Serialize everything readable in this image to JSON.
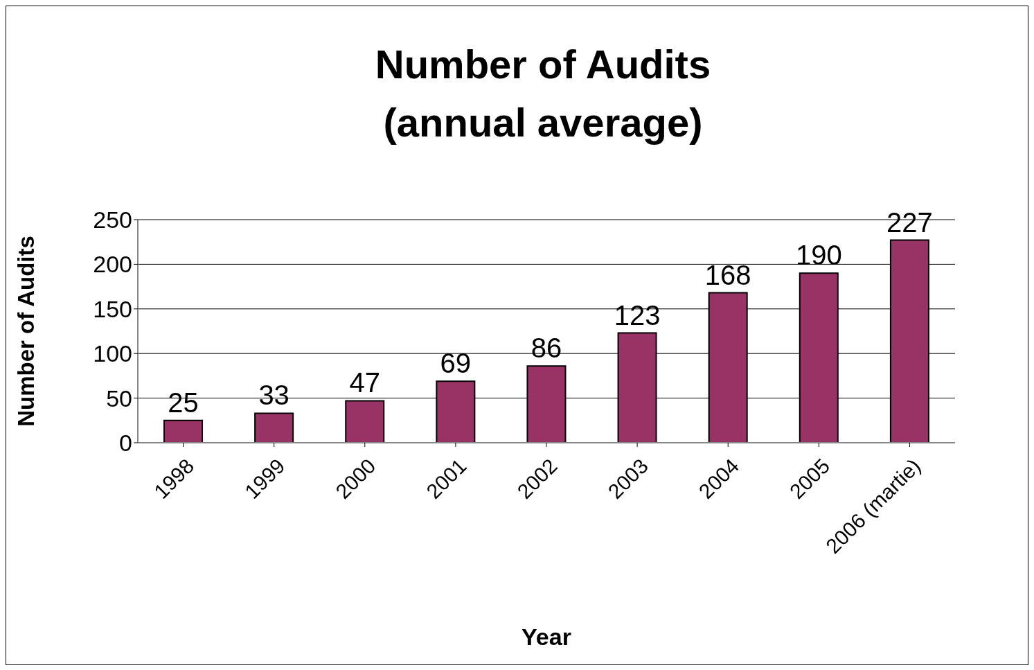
{
  "chart_data": {
    "type": "bar",
    "title": "Number of Audits\n(annual average)",
    "xlabel": "Year",
    "ylabel": "Number of Audits",
    "categories": [
      "1998",
      "1999",
      "2000",
      "2001",
      "2002",
      "2003",
      "2004",
      "2005",
      "2006 (martie)"
    ],
    "values": [
      25,
      33,
      47,
      69,
      86,
      123,
      168,
      190,
      227
    ],
    "color": "#993366",
    "ylim": [
      0,
      250
    ],
    "yticks": [
      0,
      50,
      100,
      150,
      200,
      250
    ],
    "grid": "y",
    "data_labels": true,
    "legend": false
  }
}
